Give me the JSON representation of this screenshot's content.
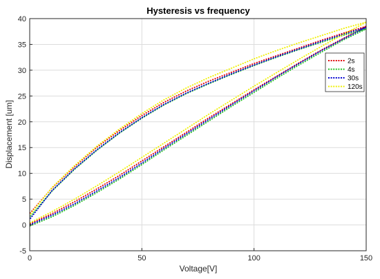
{
  "chart_data": {
    "type": "line",
    "title": "Hysteresis vs frequency",
    "xlabel": "Voltage[V]",
    "ylabel": "Displacement [um]",
    "xlim": [
      0,
      150
    ],
    "ylim": [
      -5,
      40
    ],
    "xticks": [
      0,
      50,
      100,
      150
    ],
    "yticks": [
      -5,
      0,
      5,
      10,
      15,
      20,
      25,
      30,
      35,
      40
    ],
    "grid": true,
    "legend_position": "top-right",
    "series": [
      {
        "name": "2s",
        "color": "#e00000",
        "ascending": {
          "x": [
            0,
            10,
            20,
            30,
            40,
            50,
            60,
            70,
            80,
            90,
            100,
            110,
            120,
            130,
            140,
            150
          ],
          "y": [
            0.2,
            2.2,
            4.5,
            7.0,
            9.6,
            12.4,
            15.2,
            18.0,
            20.8,
            23.5,
            26.2,
            28.8,
            31.4,
            33.9,
            36.2,
            38.5
          ]
        },
        "descending": {
          "x": [
            150,
            140,
            130,
            120,
            110,
            100,
            90,
            80,
            70,
            60,
            50,
            40,
            30,
            20,
            10,
            0
          ],
          "y": [
            38.5,
            37.2,
            35.8,
            34.3,
            32.8,
            31.3,
            29.6,
            27.9,
            26.0,
            23.8,
            21.2,
            18.3,
            15.1,
            11.3,
            7.2,
            2.2
          ]
        }
      },
      {
        "name": "4s",
        "color": "#20c020",
        "ascending": {
          "x": [
            0,
            10,
            20,
            30,
            40,
            50,
            60,
            70,
            80,
            90,
            100,
            110,
            120,
            130,
            140,
            150
          ],
          "y": [
            -0.2,
            1.6,
            3.8,
            6.3,
            8.9,
            11.7,
            14.6,
            17.4,
            20.2,
            23.0,
            25.7,
            28.4,
            31.0,
            33.5,
            35.9,
            38.0
          ]
        },
        "descending": {
          "x": [
            150,
            140,
            130,
            120,
            110,
            100,
            90,
            80,
            70,
            60,
            50,
            40,
            30,
            20,
            10,
            0
          ],
          "y": [
            38.0,
            36.8,
            35.4,
            34.0,
            32.5,
            30.9,
            29.2,
            27.4,
            25.5,
            23.3,
            20.7,
            17.8,
            14.5,
            10.8,
            6.6,
            1.5
          ]
        }
      },
      {
        "name": "30s",
        "color": "#0000d0",
        "ascending": {
          "x": [
            0,
            10,
            20,
            30,
            40,
            50,
            60,
            70,
            80,
            90,
            100,
            110,
            120,
            130,
            140,
            150
          ],
          "y": [
            0.0,
            1.9,
            4.1,
            6.6,
            9.2,
            12.0,
            14.9,
            17.7,
            20.5,
            23.3,
            26.0,
            28.7,
            31.3,
            33.8,
            36.1,
            38.3
          ]
        },
        "descending": {
          "x": [
            150,
            140,
            130,
            120,
            110,
            100,
            90,
            80,
            70,
            60,
            50,
            40,
            30,
            20,
            10,
            0
          ],
          "y": [
            38.3,
            37.0,
            35.6,
            34.1,
            32.6,
            31.0,
            29.3,
            27.5,
            25.6,
            23.4,
            20.8,
            17.9,
            14.6,
            10.9,
            6.7,
            1.1
          ]
        }
      },
      {
        "name": "120s",
        "color": "#f0f000",
        "ascending": {
          "x": [
            0,
            10,
            20,
            30,
            40,
            50,
            60,
            70,
            80,
            90,
            100,
            110,
            120,
            130,
            140,
            150
          ],
          "y": [
            0.4,
            2.6,
            5.0,
            7.6,
            10.3,
            13.1,
            15.9,
            18.7,
            21.5,
            24.2,
            26.9,
            29.5,
            32.1,
            34.6,
            37.0,
            39.3
          ]
        },
        "descending": {
          "x": [
            150,
            140,
            130,
            120,
            110,
            100,
            90,
            80,
            70,
            60,
            50,
            40,
            30,
            20,
            10,
            0
          ],
          "y": [
            39.3,
            38.1,
            36.7,
            35.3,
            33.8,
            32.2,
            30.4,
            28.6,
            26.6,
            24.3,
            21.6,
            18.6,
            15.3,
            11.5,
            7.3,
            1.9
          ]
        }
      }
    ]
  }
}
